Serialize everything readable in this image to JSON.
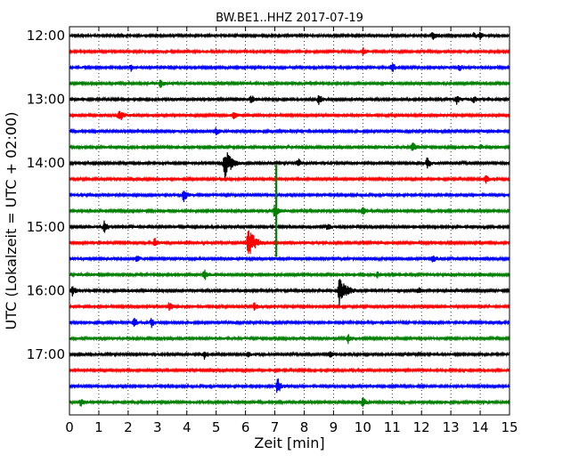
{
  "chart_data": {
    "type": "line",
    "title": "BW.BE1..HHZ 2017-07-19",
    "xlabel": "Zeit  [min]",
    "ylabel": "UTC (Lokalzeit = UTC + 02:00)",
    "xlim": [
      0,
      15
    ],
    "x_ticks": [
      "0",
      "1",
      "2",
      "3",
      "4",
      "5",
      "6",
      "7",
      "8",
      "9",
      "10",
      "11",
      "12",
      "13",
      "14",
      "15"
    ],
    "y_ticks": [
      {
        "label": "12:00",
        "row": 0
      },
      {
        "label": "13:00",
        "row": 4
      },
      {
        "label": "14:00",
        "row": 8
      },
      {
        "label": "15:00",
        "row": 12
      },
      {
        "label": "16:00",
        "row": 16
      },
      {
        "label": "17:00",
        "row": 20
      }
    ],
    "row_interval_minutes": 15,
    "grid": {
      "vertical_dotted": true
    },
    "colors": [
      "#000000",
      "#ff0000",
      "#0000ff",
      "#008000"
    ],
    "traces": [
      {
        "start": "12:00",
        "color": "#000000",
        "events": [
          {
            "t": 12.4,
            "amp": 0.35
          },
          {
            "t": 13.8,
            "amp": 0.2
          },
          {
            "t": 14.0,
            "amp": 0.2
          }
        ]
      },
      {
        "start": "12:15",
        "color": "#ff0000",
        "events": [
          {
            "t": 10.0,
            "amp": 0.25
          }
        ]
      },
      {
        "start": "12:30",
        "color": "#0000ff",
        "events": [
          {
            "t": 2.1,
            "amp": 0.2
          },
          {
            "t": 11.0,
            "amp": 0.35
          },
          {
            "t": 13.3,
            "amp": 0.2
          }
        ]
      },
      {
        "start": "12:45",
        "color": "#008000",
        "events": [
          {
            "t": 3.1,
            "amp": 0.3
          }
        ]
      },
      {
        "start": "13:00",
        "color": "#000000",
        "events": [
          {
            "t": 6.2,
            "amp": 0.3
          },
          {
            "t": 8.5,
            "amp": 0.3
          },
          {
            "t": 13.2,
            "amp": 0.3
          },
          {
            "t": 13.8,
            "amp": 0.25
          }
        ]
      },
      {
        "start": "13:15",
        "color": "#ff0000",
        "events": [
          {
            "t": 1.7,
            "amp": 0.55
          },
          {
            "t": 5.6,
            "amp": 0.25
          }
        ]
      },
      {
        "start": "13:30",
        "color": "#0000ff",
        "events": [
          {
            "t": 5.0,
            "amp": 0.25
          }
        ]
      },
      {
        "start": "13:45",
        "color": "#008000",
        "events": [
          {
            "t": 11.7,
            "amp": 0.3
          },
          {
            "t": 14.0,
            "amp": 0.2
          }
        ]
      },
      {
        "start": "14:00",
        "color": "#000000",
        "events": [
          {
            "t": 5.3,
            "amp": 1.0
          },
          {
            "t": 7.8,
            "amp": 0.3
          },
          {
            "t": 12.2,
            "amp": 0.35
          }
        ]
      },
      {
        "start": "14:15",
        "color": "#ff0000",
        "events": [
          {
            "t": 14.2,
            "amp": 0.25
          }
        ]
      },
      {
        "start": "14:30",
        "color": "#0000ff",
        "events": [
          {
            "t": 3.9,
            "amp": 0.45
          }
        ]
      },
      {
        "start": "14:45",
        "color": "#008000",
        "events": [
          {
            "t": 7.0,
            "amp": 0.5
          },
          {
            "t": 10.0,
            "amp": 0.25
          }
        ]
      },
      {
        "start": "15:00",
        "color": "#000000",
        "events": [
          {
            "t": 1.2,
            "amp": 0.45
          },
          {
            "t": 8.8,
            "amp": 0.2
          }
        ]
      },
      {
        "start": "15:15",
        "color": "#ff0000",
        "events": [
          {
            "t": 2.9,
            "amp": 0.3
          },
          {
            "t": 6.1,
            "amp": 1.0
          }
        ]
      },
      {
        "start": "15:30",
        "color": "#0000ff",
        "events": [
          {
            "t": 2.3,
            "amp": 0.2
          },
          {
            "t": 12.4,
            "amp": 0.3
          }
        ]
      },
      {
        "start": "15:45",
        "color": "#008000",
        "events": [
          {
            "t": 4.6,
            "amp": 0.45
          },
          {
            "t": 10.5,
            "amp": 0.2
          }
        ]
      },
      {
        "start": "16:00",
        "color": "#000000",
        "events": [
          {
            "t": 0.1,
            "amp": 0.35
          },
          {
            "t": 9.2,
            "amp": 1.0
          },
          {
            "t": 11.9,
            "amp": 0.2
          }
        ]
      },
      {
        "start": "16:15",
        "color": "#ff0000",
        "events": [
          {
            "t": 3.4,
            "amp": 0.3
          },
          {
            "t": 6.3,
            "amp": 0.25
          }
        ]
      },
      {
        "start": "16:30",
        "color": "#0000ff",
        "events": [
          {
            "t": 2.2,
            "amp": 0.3
          },
          {
            "t": 2.8,
            "amp": 0.3
          }
        ]
      },
      {
        "start": "16:45",
        "color": "#008000",
        "events": [
          {
            "t": 9.5,
            "amp": 0.3
          }
        ]
      },
      {
        "start": "17:00",
        "color": "#000000",
        "events": [
          {
            "t": 4.6,
            "amp": 0.35
          },
          {
            "t": 6.1,
            "amp": 0.2
          },
          {
            "t": 8.9,
            "amp": 0.2
          }
        ]
      },
      {
        "start": "17:15",
        "color": "#ff0000",
        "events": []
      },
      {
        "start": "17:30",
        "color": "#0000ff",
        "events": [
          {
            "t": 7.1,
            "amp": 0.6
          }
        ]
      },
      {
        "start": "17:45",
        "color": "#008000",
        "events": [
          {
            "t": 0.4,
            "amp": 0.3
          },
          {
            "t": 10.0,
            "amp": 0.3
          }
        ]
      }
    ],
    "spike": {
      "start_row": 8,
      "t": 7.05,
      "end_row": 14
    }
  }
}
